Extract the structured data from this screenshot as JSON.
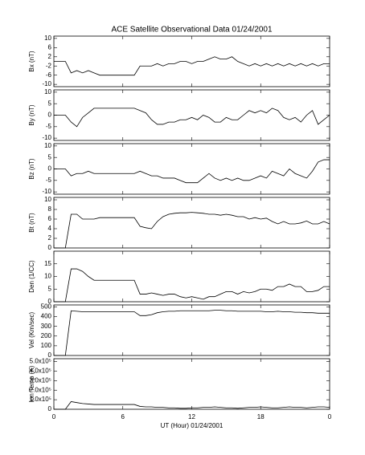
{
  "chart_data": [
    {
      "type": "line",
      "title": "ACE Satellite Observational Data  01/24/2001",
      "ylabel": "Bx (nT)",
      "ylim": [
        -11,
        11
      ],
      "yticks": [
        10,
        6,
        2,
        -2,
        -6,
        -10
      ],
      "color": "#000000",
      "x": [
        0,
        0.5,
        1,
        1.5,
        2,
        2.5,
        3,
        3.5,
        4,
        4.5,
        5,
        5.5,
        6,
        6.5,
        7,
        7.5,
        8,
        8.5,
        9,
        9.5,
        10,
        10.5,
        11,
        11.5,
        12,
        12.5,
        13,
        13.5,
        14,
        14.5,
        15,
        15.5,
        16,
        16.5,
        17,
        17.5,
        18,
        18.5,
        19,
        19.5,
        20,
        20.5,
        21,
        21.5,
        22,
        22.5,
        23,
        23.5,
        24
      ],
      "values": [
        0,
        0,
        0,
        -5,
        -4,
        -5,
        -4,
        -5,
        -6,
        -6,
        -6,
        -6,
        -6,
        -6,
        -6,
        -2,
        -2,
        -2,
        -1,
        -2,
        -1,
        -1,
        0,
        0,
        -1,
        0,
        0,
        1,
        2,
        1,
        1,
        2,
        0,
        -1,
        -2,
        -1,
        -2,
        -1,
        -2,
        -1,
        -2,
        -1,
        -2,
        -1,
        -2,
        -1,
        -2,
        -1,
        -1
      ]
    },
    {
      "type": "line",
      "ylabel": "By (nT)",
      "ylim": [
        -11,
        11
      ],
      "yticks": [
        10,
        5,
        0,
        -5,
        -10
      ],
      "color": "#000000",
      "x": [
        0,
        0.5,
        1,
        1.5,
        2,
        2.5,
        3,
        3.5,
        4,
        4.5,
        5,
        5.5,
        6,
        6.5,
        7,
        7.5,
        8,
        8.5,
        9,
        9.5,
        10,
        10.5,
        11,
        11.5,
        12,
        12.5,
        13,
        13.5,
        14,
        14.5,
        15,
        15.5,
        16,
        16.5,
        17,
        17.5,
        18,
        18.5,
        19,
        19.5,
        20,
        20.5,
        21,
        21.5,
        22,
        22.5,
        23,
        23.5,
        24
      ],
      "values": [
        0,
        0,
        0,
        -3,
        -5,
        -1,
        1,
        3,
        3,
        3,
        3,
        3,
        3,
        3,
        3,
        2,
        1,
        -2,
        -4,
        -4,
        -3,
        -3,
        -2,
        -2,
        -1,
        -2,
        0,
        -1,
        -3,
        -3,
        -1,
        -2,
        -2,
        0,
        2,
        1,
        2,
        1,
        3,
        2,
        -1,
        -2,
        -1,
        -3,
        0,
        2,
        -4,
        -2,
        0
      ]
    },
    {
      "type": "line",
      "ylabel": "Bz (nT)",
      "ylim": [
        -11,
        11
      ],
      "yticks": [
        10,
        5,
        0,
        -5,
        -10
      ],
      "color": "#000000",
      "x": [
        0,
        0.5,
        1,
        1.5,
        2,
        2.5,
        3,
        3.5,
        4,
        4.5,
        5,
        5.5,
        6,
        6.5,
        7,
        7.5,
        8,
        8.5,
        9,
        9.5,
        10,
        10.5,
        11,
        11.5,
        12,
        12.5,
        13,
        13.5,
        14,
        14.5,
        15,
        15.5,
        16,
        16.5,
        17,
        17.5,
        18,
        18.5,
        19,
        19.5,
        20,
        20.5,
        21,
        21.5,
        22,
        22.5,
        23,
        23.5,
        24
      ],
      "values": [
        0,
        0,
        0,
        -3,
        -2,
        -2,
        -1,
        -2,
        -2,
        -2,
        -2,
        -2,
        -2,
        -2,
        -2,
        -1,
        -2,
        -3,
        -3,
        -4,
        -4,
        -4,
        -5,
        -6,
        -6,
        -6,
        -4,
        -2,
        -4,
        -5,
        -4,
        -5,
        -4,
        -5,
        -5,
        -4,
        -3,
        -4,
        -1,
        -2,
        -3,
        0,
        -2,
        -3,
        -4,
        -1,
        3,
        4,
        4
      ]
    },
    {
      "type": "line",
      "ylabel": "Bt (nT)",
      "ylim": [
        0,
        10.5
      ],
      "yticks": [
        0,
        2,
        4,
        6,
        8,
        10
      ],
      "color": "#000000",
      "x": [
        0,
        0.5,
        1,
        1.5,
        2,
        2.5,
        3,
        3.5,
        4,
        4.5,
        5,
        5.5,
        6,
        6.5,
        7,
        7.5,
        8,
        8.5,
        9,
        9.5,
        10,
        10.5,
        11,
        11.5,
        12,
        12.5,
        13,
        13.5,
        14,
        14.5,
        15,
        15.5,
        16,
        16.5,
        17,
        17.5,
        18,
        18.5,
        19,
        19.5,
        20,
        20.5,
        21,
        21.5,
        22,
        22.5,
        23,
        23.5,
        24
      ],
      "values": [
        0,
        0,
        0,
        7,
        7,
        6,
        6,
        6,
        6.3,
        6.3,
        6.3,
        6.3,
        6.3,
        6.3,
        6.3,
        4.5,
        4.2,
        4,
        5.5,
        6.5,
        7,
        7.2,
        7.3,
        7.3,
        7.4,
        7.3,
        7.2,
        7,
        7,
        6.8,
        7,
        6.8,
        6.5,
        6.5,
        6,
        6.3,
        6,
        6.2,
        5.5,
        5,
        5.5,
        5,
        5,
        5.2,
        5.6,
        5,
        5,
        5.5,
        5
      ]
    },
    {
      "type": "line",
      "ylabel": "Den (1/CC)",
      "ylim": [
        0,
        20
      ],
      "yticks": [
        0,
        5,
        10,
        15
      ],
      "color": "#000000",
      "x": [
        0,
        0.5,
        1,
        1.5,
        2,
        2.5,
        3,
        3.5,
        4,
        4.5,
        5,
        5.5,
        6,
        6.5,
        7,
        7.5,
        8,
        8.5,
        9,
        9.5,
        10,
        10.5,
        11,
        11.5,
        12,
        12.5,
        13,
        13.5,
        14,
        14.5,
        15,
        15.5,
        16,
        16.5,
        17,
        17.5,
        18,
        18.5,
        19,
        19.5,
        20,
        20.5,
        21,
        21.5,
        22,
        22.5,
        23,
        23.5,
        24
      ],
      "values": [
        0,
        0,
        0,
        13,
        13,
        12,
        10,
        8.5,
        8.5,
        8.5,
        8.5,
        8.5,
        8.5,
        8.5,
        8.5,
        3,
        3,
        3.5,
        3,
        2.5,
        3,
        3,
        2,
        1.5,
        2,
        1.5,
        1,
        2,
        2,
        3,
        4,
        4,
        3,
        4,
        3.5,
        4,
        5,
        5,
        4.5,
        6,
        6,
        7,
        6,
        6,
        4,
        4,
        4.5,
        6,
        6
      ]
    },
    {
      "type": "line",
      "ylabel": "Vel (Km/sec)",
      "ylim": [
        0,
        520
      ],
      "yticks": [
        0,
        100,
        200,
        300,
        400,
        500
      ],
      "color": "#000000",
      "x": [
        0,
        0.5,
        1,
        1.5,
        2,
        2.5,
        3,
        3.5,
        4,
        4.5,
        5,
        5.5,
        6,
        6.5,
        7,
        7.5,
        8,
        8.5,
        9,
        9.5,
        10,
        10.5,
        11,
        11.5,
        12,
        12.5,
        13,
        13.5,
        14,
        14.5,
        15,
        15.5,
        16,
        16.5,
        17,
        17.5,
        18,
        18.5,
        19,
        19.5,
        20,
        20.5,
        21,
        21.5,
        22,
        22.5,
        23,
        23.5,
        24
      ],
      "values": [
        0,
        0,
        0,
        460,
        455,
        450,
        450,
        450,
        450,
        450,
        450,
        450,
        450,
        450,
        450,
        410,
        410,
        420,
        440,
        450,
        455,
        455,
        460,
        460,
        460,
        460,
        460,
        460,
        465,
        465,
        460,
        460,
        455,
        455,
        455,
        455,
        455,
        450,
        450,
        455,
        450,
        450,
        445,
        445,
        440,
        440,
        435,
        435,
        435
      ]
    },
    {
      "type": "line",
      "ylabel": "Ion Temp (K)",
      "ylim": [
        0,
        530000
      ],
      "yticks": [
        0,
        {
          "value": 100000,
          "label": "1.0x10⁵"
        },
        {
          "value": 200000,
          "label": "2.0x10⁵"
        },
        {
          "value": 300000,
          "label": "3.0x10⁵"
        },
        {
          "value": 400000,
          "label": "4.0x10⁵"
        },
        {
          "value": 500000,
          "label": "5.0x10⁵"
        }
      ],
      "color": "#000000",
      "x": [
        0,
        0.5,
        1,
        1.5,
        2,
        2.5,
        3,
        3.5,
        4,
        4.5,
        5,
        5.5,
        6,
        6.5,
        7,
        7.5,
        8,
        8.5,
        9,
        9.5,
        10,
        10.5,
        11,
        11.5,
        12,
        12.5,
        13,
        13.5,
        14,
        14.5,
        15,
        15.5,
        16,
        16.5,
        17,
        17.5,
        18,
        18.5,
        19,
        19.5,
        20,
        20.5,
        21,
        21.5,
        22,
        22.5,
        23,
        23.5,
        24
      ],
      "values": [
        0,
        0,
        0,
        80000,
        70000,
        60000,
        55000,
        50000,
        50000,
        50000,
        50000,
        50000,
        50000,
        50000,
        50000,
        30000,
        25000,
        25000,
        20000,
        20000,
        15000,
        15000,
        10000,
        10000,
        15000,
        15000,
        20000,
        20000,
        25000,
        20000,
        15000,
        15000,
        10000,
        15000,
        20000,
        20000,
        25000,
        20000,
        15000,
        15000,
        20000,
        25000,
        20000,
        20000,
        15000,
        20000,
        25000,
        25000,
        20000
      ],
      "xlabel": "UT (Hour)  01/24/2001",
      "xlim": [
        0,
        24
      ],
      "xticks": [
        0,
        6,
        12,
        18,
        {
          "value": 24,
          "label": "0"
        }
      ]
    }
  ]
}
